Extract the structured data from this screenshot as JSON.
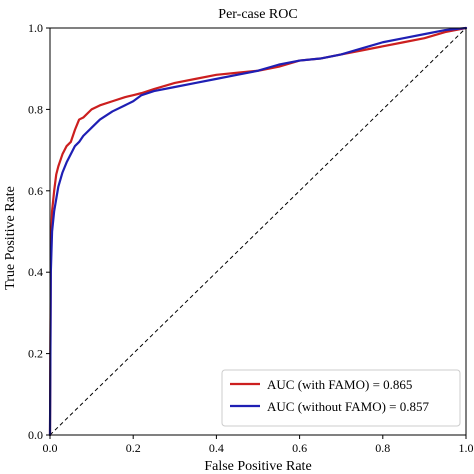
{
  "chart_data": {
    "type": "line",
    "title": "Per-case ROC",
    "xlabel": "False Positive Rate",
    "ylabel": "True Positive Rate",
    "xlim": [
      0.0,
      1.0
    ],
    "ylim": [
      0.0,
      1.0
    ],
    "xticks": [
      0.0,
      0.2,
      0.4,
      0.6,
      0.8,
      1.0
    ],
    "yticks": [
      0.0,
      0.2,
      0.4,
      0.6,
      0.8,
      1.0
    ],
    "xtick_labels": [
      "0.0",
      "0.2",
      "0.4",
      "0.6",
      "0.8",
      "1.0"
    ],
    "ytick_labels": [
      "0.0",
      "0.2",
      "0.4",
      "0.6",
      "0.8",
      "1.0"
    ],
    "grid": false,
    "legend_position": "lower-right",
    "diagonal": {
      "x": [
        0.0,
        1.0
      ],
      "y": [
        0.0,
        1.0
      ],
      "style": "dashed",
      "color": "#000000"
    },
    "series": [
      {
        "name": "AUC (with FAMO) = 0.865",
        "color": "#cc1f1f",
        "x": [
          0.0,
          0.002,
          0.005,
          0.01,
          0.015,
          0.02,
          0.03,
          0.04,
          0.05,
          0.06,
          0.07,
          0.08,
          0.1,
          0.12,
          0.15,
          0.18,
          0.2,
          0.22,
          0.25,
          0.3,
          0.35,
          0.4,
          0.45,
          0.5,
          0.55,
          0.6,
          0.65,
          0.7,
          0.75,
          0.8,
          0.85,
          0.9,
          0.95,
          1.0
        ],
        "y": [
          0.0,
          0.45,
          0.55,
          0.6,
          0.64,
          0.66,
          0.69,
          0.71,
          0.72,
          0.75,
          0.775,
          0.78,
          0.8,
          0.81,
          0.82,
          0.83,
          0.835,
          0.84,
          0.85,
          0.865,
          0.875,
          0.885,
          0.89,
          0.895,
          0.905,
          0.92,
          0.925,
          0.935,
          0.945,
          0.955,
          0.965,
          0.975,
          0.99,
          1.0
        ]
      },
      {
        "name": "AUC (without FAMO) = 0.857",
        "color": "#1f1fb4",
        "x": [
          0.0,
          0.002,
          0.005,
          0.01,
          0.015,
          0.02,
          0.03,
          0.04,
          0.05,
          0.06,
          0.07,
          0.08,
          0.1,
          0.12,
          0.15,
          0.18,
          0.2,
          0.22,
          0.25,
          0.3,
          0.35,
          0.4,
          0.45,
          0.5,
          0.55,
          0.6,
          0.65,
          0.7,
          0.75,
          0.8,
          0.85,
          0.9,
          0.95,
          1.0
        ],
        "y": [
          0.0,
          0.4,
          0.5,
          0.55,
          0.58,
          0.61,
          0.645,
          0.67,
          0.69,
          0.71,
          0.72,
          0.735,
          0.755,
          0.775,
          0.795,
          0.81,
          0.82,
          0.835,
          0.845,
          0.855,
          0.865,
          0.875,
          0.885,
          0.895,
          0.91,
          0.92,
          0.925,
          0.935,
          0.95,
          0.965,
          0.975,
          0.985,
          0.995,
          1.0
        ]
      }
    ]
  }
}
